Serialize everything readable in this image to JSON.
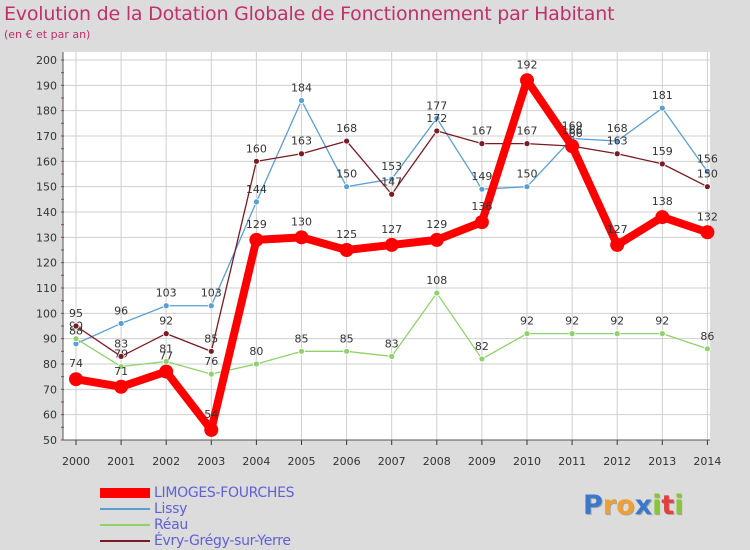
{
  "title": "Evolution de la Dotation Globale de Fonctionnement par Habitant",
  "subtitle": "(en € et par an)",
  "logo": {
    "text": "Proxiti",
    "letters": [
      {
        "char": "P",
        "color": "#3b78c9"
      },
      {
        "char": "r",
        "color": "#f0a030"
      },
      {
        "char": "o",
        "color": "#f0a030"
      },
      {
        "char": "x",
        "color": "#3b78c9"
      },
      {
        "char": "i",
        "color": "#8ac43a"
      },
      {
        "char": "t",
        "color": "#e04040"
      },
      {
        "char": "i",
        "color": "#8ac43a"
      }
    ]
  },
  "chart_data": {
    "type": "line",
    "title": "Evolution de la Dotation Globale de Fonctionnement par Habitant",
    "ylabel": "(en € et par an)",
    "xlabel": "",
    "x": [
      "2000",
      "2001",
      "2002",
      "2003",
      "2004",
      "2005",
      "2006",
      "2007",
      "2008",
      "2009",
      "2010",
      "2011",
      "2012",
      "2013",
      "2014"
    ],
    "ylim": [
      50,
      200
    ],
    "yticks": [
      50,
      60,
      70,
      80,
      90,
      100,
      110,
      120,
      130,
      140,
      150,
      160,
      170,
      180,
      190,
      200
    ],
    "grid": true,
    "series": [
      {
        "name": "Lissy",
        "color": "#5a9fd4",
        "values": [
          88,
          96,
          103,
          103,
          144,
          184,
          150,
          153,
          177,
          149,
          150,
          169,
          168,
          181,
          156
        ]
      },
      {
        "name": "Réau",
        "color": "#8ed36a",
        "values": [
          90,
          79,
          81,
          76,
          80,
          85,
          85,
          83,
          108,
          82,
          92,
          92,
          92,
          92,
          86
        ]
      },
      {
        "name": "Évry-Grégy-sur-Yerre",
        "color": "#7a1a22",
        "values": [
          95,
          83,
          92,
          85,
          160,
          163,
          168,
          147,
          172,
          167,
          167,
          166,
          163,
          159,
          150
        ]
      },
      {
        "name": "LIMOGES-FOURCHES",
        "color": "#ff0000",
        "values": [
          74,
          71,
          77,
          54,
          129,
          130,
          125,
          127,
          129,
          136,
          192,
          166,
          127,
          138,
          132
        ]
      }
    ],
    "legend": [
      "LIMOGES-FOURCHES",
      "Lissy",
      "Réau",
      "Évry-Grégy-sur-Yerre"
    ]
  }
}
